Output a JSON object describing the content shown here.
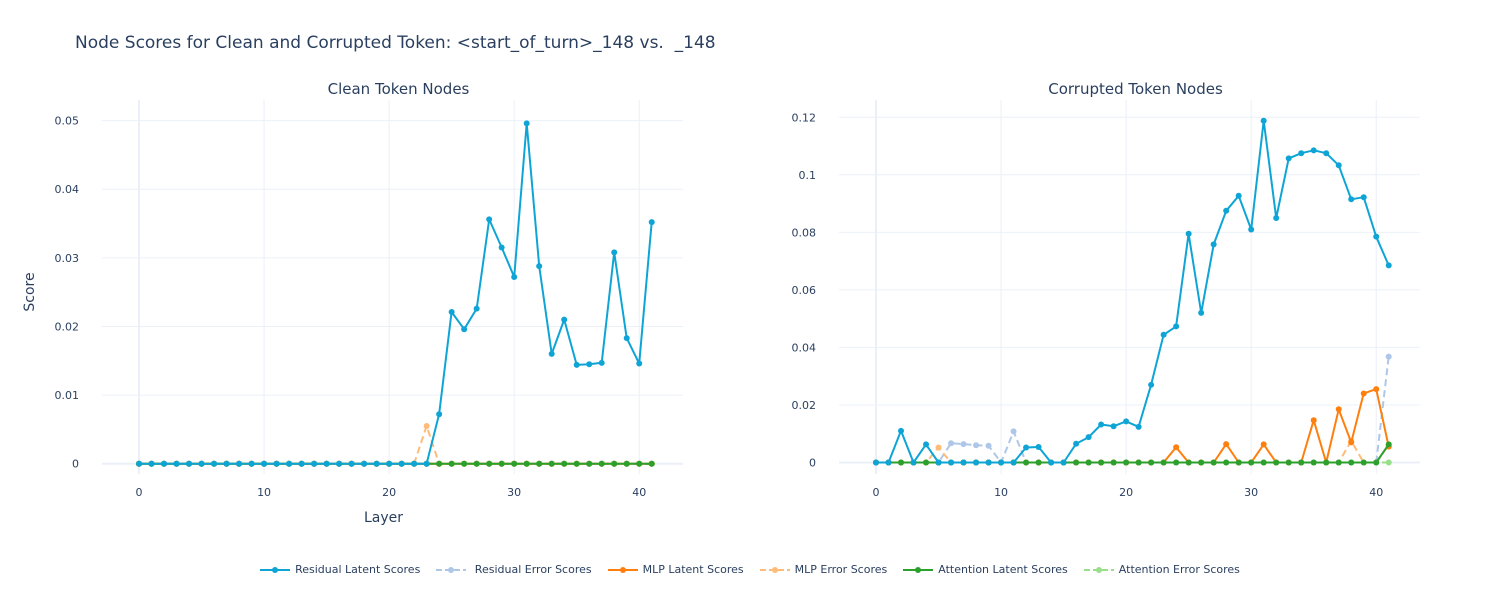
{
  "title": "Node Scores for Clean and Corrupted Token: <start_of_turn>_148 vs.  _148",
  "colors": {
    "residual_latent": "#0ea5d6",
    "residual_error": "#aec7e8",
    "mlp_latent": "#ff7f0e",
    "mlp_error": "#ffbb78",
    "attention_latent": "#2ca02c",
    "attention_error": "#98df8a",
    "grid": "#ebf0f8",
    "text": "#2a3f5f"
  },
  "legend": [
    {
      "key": "residual_latent",
      "label": "Residual Latent Scores",
      "dash": false
    },
    {
      "key": "residual_error",
      "label": " Residual Error Scores",
      "dash": true
    },
    {
      "key": "mlp_latent",
      "label": "MLP Latent Scores",
      "dash": false
    },
    {
      "key": "mlp_error",
      "label": "MLP Error Scores",
      "dash": true
    },
    {
      "key": "attention_latent",
      "label": "Attention Latent Scores",
      "dash": false
    },
    {
      "key": "attention_error",
      "label": "Attention Error Scores",
      "dash": true
    }
  ],
  "chart_data": [
    {
      "type": "line",
      "title": "Clean Token Nodes",
      "xlabel": "Layer",
      "ylabel": "Score",
      "xlim": [
        -2,
        43.5
      ],
      "ylim": [
        -0.0015,
        0.053
      ],
      "xticks": [
        0,
        10,
        20,
        30,
        40
      ],
      "yticks": [
        0,
        0.01,
        0.02,
        0.03,
        0.04,
        0.05
      ],
      "ytick_labels": [
        "0",
        "0.01",
        "0.02",
        "0.03",
        "0.04",
        "0.05"
      ],
      "x": [
        0,
        1,
        2,
        3,
        4,
        5,
        6,
        7,
        8,
        9,
        10,
        11,
        12,
        13,
        14,
        15,
        16,
        17,
        18,
        19,
        20,
        21,
        22,
        23,
        24,
        25,
        26,
        27,
        28,
        29,
        30,
        31,
        32,
        33,
        34,
        35,
        36,
        37,
        38,
        39,
        40,
        41
      ],
      "series": [
        {
          "key": "residual_latent",
          "name": "Residual Latent Scores",
          "values": [
            0,
            0,
            0,
            0,
            0,
            0,
            0,
            0,
            0,
            0,
            0,
            0,
            0,
            0,
            0,
            0,
            0,
            0,
            0,
            0,
            0,
            0,
            0,
            0,
            0.0072,
            0.0221,
            0.0196,
            0.0226,
            0.0356,
            0.0315,
            0.0272,
            0.0496,
            0.0288,
            0.016,
            0.021,
            0.0144,
            0.0145,
            0.0147,
            0.0308,
            0.0183,
            0.0146,
            0.0352
          ]
        },
        {
          "key": "residual_error",
          "name": " Residual Error Scores",
          "values": [
            0,
            0,
            0,
            0,
            0,
            0,
            0,
            0,
            0,
            0,
            0,
            0,
            0,
            0,
            0,
            0,
            0,
            0,
            0,
            0,
            0,
            0,
            0,
            0,
            0,
            0,
            0,
            0,
            0,
            0,
            0,
            0,
            0,
            0,
            0,
            0,
            0,
            0,
            0,
            0,
            0,
            0
          ]
        },
        {
          "key": "mlp_latent",
          "name": "MLP Latent Scores",
          "values": [
            0,
            0,
            0,
            0,
            0,
            0,
            0,
            0,
            0,
            0,
            0,
            0,
            0,
            0,
            0,
            0,
            0,
            0,
            0,
            0,
            0,
            0,
            0,
            0,
            0,
            0,
            0,
            0,
            0,
            0,
            0,
            0,
            0,
            0,
            0,
            0,
            0,
            0,
            0,
            0,
            0,
            0
          ]
        },
        {
          "key": "mlp_error",
          "name": "MLP Error Scores",
          "values": [
            0,
            0,
            0,
            0,
            0,
            0,
            0,
            0,
            0,
            0,
            0,
            0,
            0,
            0,
            0,
            0,
            0,
            0,
            0,
            0,
            0,
            0,
            0,
            0.0055,
            0,
            0,
            0,
            0,
            0,
            0,
            0,
            0,
            0,
            0,
            0,
            0,
            0,
            0,
            0,
            0,
            0,
            0
          ]
        },
        {
          "key": "attention_latent",
          "name": "Attention Latent Scores",
          "values": [
            0,
            0,
            0,
            0,
            0,
            0,
            0,
            0,
            0,
            0,
            0,
            0,
            0,
            0,
            0,
            0,
            0,
            0,
            0,
            0,
            0,
            0,
            0,
            0,
            0,
            0,
            0,
            0,
            0,
            0,
            0,
            0,
            0,
            0,
            0,
            0,
            0,
            0,
            0,
            0,
            0,
            0
          ]
        },
        {
          "key": "attention_error",
          "name": "Attention Error Scores",
          "values": [
            0,
            0,
            0,
            0,
            0,
            0,
            0,
            0,
            0,
            0,
            0,
            0,
            0,
            0,
            0,
            0,
            0,
            0,
            0,
            0,
            0,
            0,
            0,
            0,
            0,
            0,
            0,
            0,
            0,
            0,
            0,
            0,
            0,
            0,
            0,
            0,
            0,
            0,
            0,
            0,
            0,
            0
          ]
        }
      ]
    },
    {
      "type": "line",
      "title": "Corrupted Token Nodes",
      "xlabel": "",
      "ylabel": "",
      "xlim": [
        -2,
        43.5
      ],
      "ylim": [
        -0.004,
        0.126
      ],
      "xticks": [
        0,
        10,
        20,
        30,
        40
      ],
      "yticks": [
        0,
        0.02,
        0.04,
        0.06,
        0.08,
        0.1,
        0.12
      ],
      "ytick_labels": [
        "0",
        "0.02",
        "0.04",
        "0.06",
        "0.08",
        "0.1",
        "0.12"
      ],
      "x": [
        0,
        1,
        2,
        3,
        4,
        5,
        6,
        7,
        8,
        9,
        10,
        11,
        12,
        13,
        14,
        15,
        16,
        17,
        18,
        19,
        20,
        21,
        22,
        23,
        24,
        25,
        26,
        27,
        28,
        29,
        30,
        31,
        32,
        33,
        34,
        35,
        36,
        37,
        38,
        39,
        40,
        41
      ],
      "series": [
        {
          "key": "residual_latent",
          "name": "Residual Latent Scores",
          "values": [
            0,
            0,
            0.011,
            0,
            0.0063,
            0,
            0,
            0,
            0,
            0,
            0,
            0,
            0.0052,
            0.0054,
            0,
            0,
            0.0065,
            0.0088,
            0.0132,
            0.0126,
            0.0143,
            0.0124,
            0.027,
            0.0444,
            0.0473,
            0.0795,
            0.052,
            0.0758,
            0.0875,
            0.0927,
            0.081,
            0.1188,
            0.085,
            0.1057,
            0.1075,
            0.1085,
            0.1075,
            0.1033,
            0.0915,
            0.0922,
            0.0785,
            0.0685
          ]
        },
        {
          "key": "residual_error",
          "name": " Residual Error Scores",
          "values": [
            0,
            0,
            0,
            0,
            0,
            0,
            0.0067,
            0.0064,
            0.006,
            0.0058,
            0,
            0.0108,
            0,
            0,
            0,
            0,
            0,
            0,
            0,
            0,
            0,
            0,
            0,
            0,
            0,
            0,
            0,
            0,
            0,
            0,
            0,
            0,
            0,
            0,
            0,
            0,
            0,
            0,
            0,
            0,
            0,
            0.0368
          ]
        },
        {
          "key": "mlp_latent",
          "name": "MLP Latent Scores",
          "values": [
            0,
            0,
            0,
            0,
            0,
            0,
            0,
            0,
            0,
            0,
            0,
            0,
            0,
            0,
            0,
            0,
            0,
            0,
            0,
            0,
            0,
            0,
            0,
            0,
            0.0053,
            0,
            0,
            0,
            0.0064,
            0,
            0,
            0.0063,
            0,
            0,
            0,
            0.0147,
            0,
            0.0185,
            0.007,
            0.024,
            0.0255,
            0.0055
          ]
        },
        {
          "key": "mlp_error",
          "name": "MLP Error Scores",
          "values": [
            0,
            0,
            0,
            0,
            0,
            0.0052,
            0,
            0,
            0,
            0,
            0,
            0,
            0,
            0,
            0,
            0,
            0,
            0,
            0,
            0,
            0,
            0,
            0,
            0,
            0,
            0,
            0,
            0,
            0,
            0,
            0,
            0,
            0,
            0,
            0,
            0,
            0,
            0,
            0.0075,
            0,
            0,
            0.006
          ]
        },
        {
          "key": "attention_latent",
          "name": "Attention Latent Scores",
          "values": [
            0,
            0,
            0,
            0,
            0,
            0,
            0,
            0,
            0,
            0,
            0,
            0,
            0,
            0,
            0,
            0,
            0,
            0,
            0,
            0,
            0,
            0,
            0,
            0,
            0,
            0,
            0,
            0,
            0,
            0,
            0,
            0,
            0,
            0,
            0,
            0,
            0,
            0,
            0,
            0,
            0,
            0.0063
          ]
        },
        {
          "key": "attention_error",
          "name": "Attention Error Scores",
          "values": [
            0,
            0,
            0,
            0,
            0,
            0,
            0,
            0,
            0,
            0,
            0,
            0,
            0,
            0,
            0,
            0,
            0,
            0,
            0,
            0,
            0,
            0,
            0,
            0,
            0,
            0,
            0,
            0,
            0,
            0,
            0,
            0,
            0,
            0,
            0,
            0,
            0,
            0,
            0,
            0,
            0,
            0
          ]
        }
      ]
    }
  ]
}
